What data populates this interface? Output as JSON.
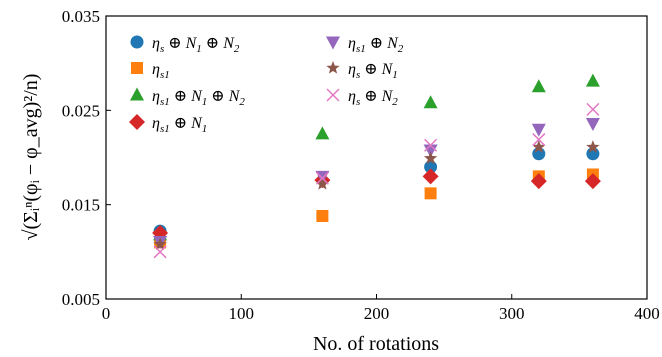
{
  "chart_data": {
    "type": "scatter",
    "xlabel": "No. of rotations",
    "ylabel": "√(Σᵢⁿ(φᵢ − φ_avg)²/n)",
    "xlim": [
      0,
      400
    ],
    "ylim": [
      0.005,
      0.035
    ],
    "xticks": [
      "0",
      "100",
      "200",
      "300",
      "400"
    ],
    "yticks": [
      "0.005",
      "0.015",
      "0.025",
      "0.035"
    ],
    "grid": false,
    "legend_position": "top-left",
    "series": [
      {
        "name": "ηs ⊕ N1 ⊕ N2",
        "marker": "circle",
        "color": "#1f77b4",
        "x": [
          40,
          240,
          320,
          360
        ],
        "y": [
          0.0122,
          0.019,
          0.0204,
          0.0204
        ]
      },
      {
        "name": "ηs1",
        "marker": "square",
        "color": "#ff7f0e",
        "x": [
          40,
          160,
          240,
          320,
          360
        ],
        "y": [
          0.011,
          0.0138,
          0.0162,
          0.018,
          0.0182
        ]
      },
      {
        "name": "ηs1 ⊕ N1 ⊕ N2",
        "marker": "triangle-up",
        "color": "#2ca02c",
        "x": [
          40,
          160,
          240,
          320,
          360
        ],
        "y": [
          0.0118,
          0.0225,
          0.0258,
          0.0275,
          0.0281
        ]
      },
      {
        "name": "ηs1 ⊕ N1",
        "marker": "diamond",
        "color": "#d62728",
        "x": [
          40,
          160,
          240,
          320,
          360
        ],
        "y": [
          0.012,
          0.0176,
          0.018,
          0.0175,
          0.0175
        ]
      },
      {
        "name": "ηs1 ⊕ N2",
        "marker": "triangle-down",
        "color": "#9467bd",
        "x": [
          40,
          160,
          240,
          320,
          360
        ],
        "y": [
          0.0111,
          0.018,
          0.0208,
          0.023,
          0.0236
        ]
      },
      {
        "name": "ηs ⊕ N1",
        "marker": "star",
        "color": "#8c564b",
        "x": [
          40,
          160,
          240,
          320,
          360
        ],
        "y": [
          0.0108,
          0.0172,
          0.0199,
          0.0211,
          0.0211
        ]
      },
      {
        "name": "ηs ⊕ N2",
        "marker": "x",
        "color": "#e377c2",
        "x": [
          40,
          160,
          240,
          320,
          360
        ],
        "y": [
          0.01,
          0.0178,
          0.0213,
          0.0219,
          0.0251
        ]
      }
    ]
  },
  "legend": [
    {
      "base": "η",
      "sub": "s",
      "rest": " ⊕ N",
      "sub2": "1",
      "rest2": " ⊕ N",
      "sub3": "2"
    },
    {
      "base": "η",
      "sub": "s1",
      "rest": "",
      "sub2": "",
      "rest2": "",
      "sub3": ""
    },
    {
      "base": "η",
      "sub": "s1",
      "rest": " ⊕ N",
      "sub2": "1",
      "rest2": " ⊕ N",
      "sub3": "2"
    },
    {
      "base": "η",
      "sub": "s1",
      "rest": " ⊕ N",
      "sub2": "1",
      "rest2": "",
      "sub3": ""
    },
    {
      "base": "η",
      "sub": "s1",
      "rest": " ⊕ N",
      "sub2": "2",
      "rest2": "",
      "sub3": ""
    },
    {
      "base": "η",
      "sub": "s",
      "rest": " ⊕ N",
      "sub2": "1",
      "rest2": "",
      "sub3": ""
    },
    {
      "base": "η",
      "sub": "s",
      "rest": " ⊕ N",
      "sub2": "2",
      "rest2": "",
      "sub3": ""
    }
  ]
}
